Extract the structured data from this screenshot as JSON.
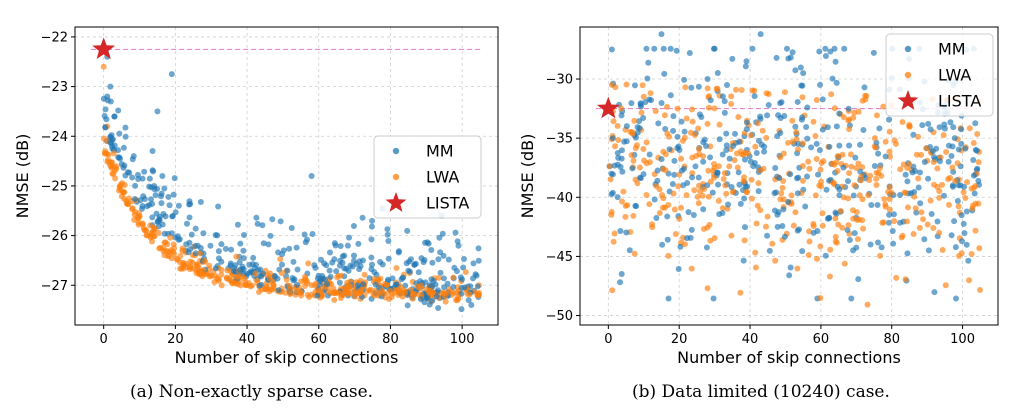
{
  "captions": [
    "(a) Non-exactly sparse case.",
    "(b) Data limited (10240) case."
  ],
  "colors": {
    "MM": "#1f77b4",
    "LWA": "#ff7f0e",
    "LISTA": "#d62728",
    "reference_line": "#e377c2"
  },
  "chart_data": [
    {
      "type": "scatter",
      "title": "",
      "xlabel": "Number of skip connections",
      "ylabel": "NMSE (dB)",
      "xlim": [
        -8,
        110
      ],
      "ylim": [
        -27.8,
        -21.8
      ],
      "xticks": [
        0,
        20,
        40,
        60,
        80,
        100
      ],
      "yticks": [
        -27,
        -26,
        -25,
        -24,
        -23,
        -22
      ],
      "grid": true,
      "legend_position": "center-right",
      "legend": [
        "MM",
        "LWA",
        "LISTA"
      ],
      "reference_line_y": -22.25,
      "lista_point": {
        "x": 0,
        "y": -22.25
      },
      "series": [
        {
          "name": "MM",
          "marker": "circle",
          "x_range": [
            0,
            105
          ],
          "trend": {
            "start": -23.6,
            "end": -27.0,
            "decay": 18,
            "spread": 0.55
          },
          "outliers": [
            [
              1,
              -22.4
            ],
            [
              1,
              -23.2
            ],
            [
              2,
              -23.3
            ],
            [
              3,
              -23.6
            ],
            [
              15,
              -23.5
            ],
            [
              19,
              -22.75
            ],
            [
              58,
              -24.8
            ]
          ]
        },
        {
          "name": "LWA",
          "marker": "circle",
          "x_range": [
            0,
            105
          ],
          "trend": {
            "start": -24.2,
            "end": -27.15,
            "decay": 14,
            "spread": 0.3
          },
          "outliers": [
            [
              0,
              -22.6
            ],
            [
              1,
              -23.8
            ],
            [
              1,
              -24.1
            ]
          ]
        }
      ]
    },
    {
      "type": "scatter",
      "title": "",
      "xlabel": "Number of skip connections",
      "ylabel": "NMSE (dB)",
      "xlim": [
        -8,
        110
      ],
      "ylim": [
        -50.8,
        -25.6
      ],
      "xticks": [
        0,
        20,
        40,
        60,
        80,
        100
      ],
      "yticks": [
        -50,
        -45,
        -40,
        -35,
        -30
      ],
      "grid": true,
      "legend_position": "top-right",
      "legend": [
        "MM",
        "LWA",
        "LISTA"
      ],
      "reference_line_y": -32.5,
      "lista_point": {
        "x": 0,
        "y": -32.5
      },
      "series": [
        {
          "name": "MM",
          "marker": "circle",
          "x_range": [
            0,
            105
          ],
          "trend": {
            "band": [
              -49.0,
              -27.0
            ]
          },
          "outliers": [
            [
              1,
              -27.5
            ],
            [
              15,
              -26.2
            ],
            [
              23,
              -27.8
            ],
            [
              28,
              -30.0
            ],
            [
              35,
              -28.3
            ],
            [
              39,
              -28.5
            ],
            [
              43,
              -26.2
            ],
            [
              55,
              -29.5
            ],
            [
              88,
              -32.0
            ]
          ]
        },
        {
          "name": "LWA",
          "marker": "circle",
          "x_range": [
            0,
            105
          ],
          "trend": {
            "band": [
              -49.5,
              -30.0
            ]
          },
          "outliers": [
            [
              1,
              -30.5
            ],
            [
              10,
              -31.5
            ],
            [
              99,
              -38.5
            ],
            [
              104,
              -38.0
            ]
          ]
        }
      ]
    }
  ]
}
